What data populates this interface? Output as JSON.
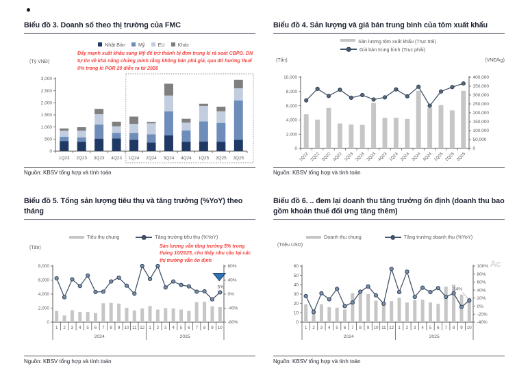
{
  "page": {
    "source_label": "Nguồn: KBSV tổng hợp và tính toán",
    "watermark": "Ac"
  },
  "colors": {
    "navy": "#1F3864",
    "mid_blue": "#6F8DBB",
    "light_blue": "#C2CEDF",
    "dark_gray": "#7F7F7F",
    "bar_gray": "#C6C6C6",
    "line": "#44546A",
    "marker_fill": "#7D90AA",
    "marker_stroke": "#2C4057",
    "marker_fill_dark": "#5A6673",
    "red": "#F5413D",
    "triangle": "#2E75B6",
    "axis": "#595959"
  },
  "chart_data": [
    {
      "type": "bar",
      "stacked": true,
      "title": "Biểu đồ 3. Doanh số theo thị trường của FMC",
      "left_unit": "(Tỷ VNĐ)",
      "annotation": "Đẩy mạnh xuất khẩu sang Mỹ để trở thành bị đơn trong kì rà soát CBPG. DN tự tin về khả năng chứng minh rằng không bán phá giá, qua đó hưởng thuế 0% trong kì POR 20 diễn ra từ 2026",
      "categories": [
        "1Q23",
        "2Q23",
        "3Q23",
        "4Q23",
        "1Q24",
        "2Q24",
        "3Q24",
        "4Q24",
        "1Q25",
        "2Q25",
        "3Q25"
      ],
      "series": [
        {
          "name": "Nhật Bản",
          "color": "navy",
          "values": [
            420,
            390,
            520,
            530,
            470,
            360,
            650,
            390,
            400,
            390,
            470
          ]
        },
        {
          "name": "Mỹ",
          "color": "mid_blue",
          "values": [
            180,
            180,
            580,
            230,
            280,
            340,
            1000,
            470,
            830,
            780,
            1630
          ]
        },
        {
          "name": "EU",
          "color": "light_blue",
          "values": [
            250,
            280,
            430,
            270,
            380,
            450,
            650,
            320,
            640,
            480,
            500
          ]
        },
        {
          "name": "Khác",
          "color": "dark_gray",
          "values": [
            90,
            140,
            220,
            190,
            300,
            60,
            490,
            160,
            90,
            190,
            350
          ]
        }
      ],
      "left_axis": {
        "min": 0,
        "max": 3000,
        "step": 500,
        "format": "comma"
      },
      "x_style": "plain",
      "highlight": {
        "from_index": 4,
        "style": "dotted-box"
      },
      "legend": [
        {
          "swatch": "box",
          "color": "navy",
          "label": "Nhật Bản"
        },
        {
          "swatch": "box",
          "color": "mid_blue",
          "label": "Mỹ"
        },
        {
          "swatch": "box",
          "color": "light_blue",
          "label": "EU"
        },
        {
          "swatch": "box",
          "color": "dark_gray",
          "label": "Khác"
        }
      ]
    },
    {
      "type": "combo",
      "title": "Biểu đồ 4. Sản lượng và giá bán trung bình của tôm xuất khẩu",
      "left_unit": "(Tấn)",
      "right_unit": "(VNĐ/kg)",
      "categories": [
        "1Q22",
        "2Q22",
        "3Q22",
        "4Q22",
        "1Q23",
        "2Q23",
        "3Q23",
        "4Q23",
        "1Q24",
        "2Q24",
        "3Q24",
        "4Q24",
        "1Q25",
        "2Q25",
        "3Q25"
      ],
      "bar_series": {
        "name": "Sản lượng tôm xuất khẩu (Trục trái)",
        "values": [
          4800,
          4050,
          5700,
          3500,
          3350,
          3300,
          6400,
          4300,
          4300,
          4150,
          8100,
          5700,
          6100,
          5350,
          8100
        ]
      },
      "line_series": {
        "name": "Giá bán trung bình (Trục phải)",
        "marker": "dark",
        "values": [
          270000,
          335000,
          295000,
          330000,
          285000,
          300000,
          275000,
          287000,
          332000,
          293000,
          347000,
          240000,
          320000,
          345000,
          365000
        ]
      },
      "left_axis": {
        "min": 0,
        "max": 10000,
        "step": 2000,
        "format": "comma"
      },
      "right_axis": {
        "min": 0,
        "max": 400000,
        "step": 50000,
        "format": "comma"
      },
      "x_style": "rot45",
      "legend": [
        {
          "swatch": "bar",
          "label": "Sản lượng tôm xuất khẩu (Trục trái)"
        },
        {
          "swatch": "line",
          "label": "Giá bán trung bình (Trục phải)"
        }
      ]
    },
    {
      "type": "combo",
      "title": "Biểu đồ 5. Tổng sản lượng tiêu thụ và tăng trưởng (%YoY) theo tháng",
      "left_unit": "(Tấn)",
      "annotation": "Sản lượng vẫn tăng trưởng 5% trong tháng 10/2025, cho thấy nhu cầu tại các thị trường vẫn ổn định",
      "categories": [
        "1",
        "2",
        "3",
        "4",
        "5",
        "6",
        "7",
        "8",
        "9",
        "10",
        "11",
        "12",
        "1",
        "2",
        "3",
        "4",
        "5",
        "6",
        "7",
        "8",
        "9",
        "10"
      ],
      "x_groups": [
        {
          "label": "2024",
          "count": 12
        },
        {
          "label": "2025",
          "count": 10
        }
      ],
      "bar_series": {
        "name": "Tiêu thụ chung",
        "values": [
          1600,
          950,
          1700,
          1450,
          1450,
          1300,
          2700,
          2750,
          2650,
          2050,
          1650,
          1950,
          2300,
          1800,
          2000,
          1950,
          1800,
          1600,
          2850,
          2900,
          2250,
          2150
        ]
      },
      "line_series": {
        "name": "Tăng trưởng tiêu thụ (%YoY)",
        "marker": "light",
        "values": [
          45,
          -9,
          42,
          23,
          53,
          6,
          7,
          36,
          47,
          24,
          1,
          80,
          43,
          80,
          19,
          36,
          26,
          22,
          7,
          8,
          -15,
          5
        ]
      },
      "left_axis": {
        "min": 0,
        "max": 8000,
        "step": 2000,
        "format": "comma"
      },
      "right_axis": {
        "min": -80,
        "max": 80,
        "step": 40,
        "format": "pct"
      },
      "x_style": "months",
      "point_callout": {
        "index": 21,
        "label": "5%",
        "marker": "triangle"
      },
      "legend": [
        {
          "swatch": "bar",
          "label": "Tiêu thụ chung"
        },
        {
          "swatch": "line",
          "label": "Tăng trưởng tiêu thụ (%YoY)"
        }
      ]
    },
    {
      "type": "combo",
      "title": "Biểu đồ 6. .. đem lại doanh thu tăng trưởng ổn định (doanh thu bao gồm khoản thuế đối ứng tăng thêm)",
      "left_unit": "(Triệu USD)",
      "categories": [
        "1",
        "2",
        "3",
        "4",
        "5",
        "6",
        "7",
        "8",
        "9",
        "10",
        "11",
        "12",
        "1",
        "2",
        "3",
        "4",
        "5",
        "6",
        "7",
        "8",
        "9",
        "10"
      ],
      "x_groups": [
        {
          "label": "2024",
          "count": 12
        },
        {
          "label": "2025",
          "count": 10
        }
      ],
      "bar_series": {
        "name": "Doanh thu chung",
        "values": [
          19,
          14,
          19,
          16,
          15.5,
          13.5,
          31,
          30.5,
          30,
          23,
          19.5,
          22.5,
          26,
          21,
          23.5,
          24,
          21,
          19.5,
          38,
          40,
          29.5,
          26
        ]
      },
      "line_series": {
        "name": "Tăng trưởng doanh thu (%YoY)",
        "marker": "light",
        "values": [
          25,
          -15,
          32,
          17,
          43,
          0,
          9,
          36,
          49,
          27,
          6,
          93,
          35,
          86,
          23,
          46,
          35,
          45,
          23,
          32,
          -2,
          14
        ]
      },
      "left_axis": {
        "min": 0,
        "max": 60,
        "step": 10,
        "format": "plain"
      },
      "right_axis": {
        "min": -40,
        "max": 100,
        "step": 20,
        "format": "pct"
      },
      "x_style": "months",
      "point_callout": {
        "index": 21,
        "label": "14%",
        "marker": "connector"
      },
      "legend": [
        {
          "swatch": "bar",
          "label": "Doanh thu chung"
        },
        {
          "swatch": "line",
          "label": "Tăng trưởng doanh thu (%YoY)"
        }
      ]
    }
  ]
}
